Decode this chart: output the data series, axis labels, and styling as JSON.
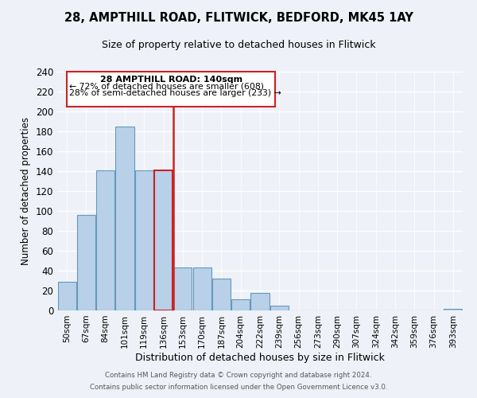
{
  "title1": "28, AMPTHILL ROAD, FLITWICK, BEDFORD, MK45 1AY",
  "title2": "Size of property relative to detached houses in Flitwick",
  "xlabel": "Distribution of detached houses by size in Flitwick",
  "ylabel": "Number of detached properties",
  "bar_labels": [
    "50sqm",
    "67sqm",
    "84sqm",
    "101sqm",
    "119sqm",
    "136sqm",
    "153sqm",
    "170sqm",
    "187sqm",
    "204sqm",
    "222sqm",
    "239sqm",
    "256sqm",
    "273sqm",
    "290sqm",
    "307sqm",
    "324sqm",
    "342sqm",
    "359sqm",
    "376sqm",
    "393sqm"
  ],
  "bar_values": [
    29,
    96,
    141,
    185,
    141,
    141,
    43,
    43,
    32,
    11,
    18,
    5,
    0,
    0,
    0,
    0,
    0,
    0,
    0,
    0,
    2
  ],
  "bar_color": "#b8d0e8",
  "bar_edge_color": "#6699bb",
  "highlight_bar_index": 5,
  "highlight_bar_color": "#b8d0e8",
  "highlight_bar_edge_color": "#cc2222",
  "vline_color": "#cc2222",
  "annotation_title": "28 AMPTHILL ROAD: 140sqm",
  "annotation_line1": "← 72% of detached houses are smaller (608)",
  "annotation_line2": "28% of semi-detached houses are larger (233) →",
  "ylim": [
    0,
    240
  ],
  "yticks": [
    0,
    20,
    40,
    60,
    80,
    100,
    120,
    140,
    160,
    180,
    200,
    220,
    240
  ],
  "footer1": "Contains HM Land Registry data © Crown copyright and database right 2024.",
  "footer2": "Contains public sector information licensed under the Open Government Licence v3.0.",
  "bg_color": "#eef2f8"
}
